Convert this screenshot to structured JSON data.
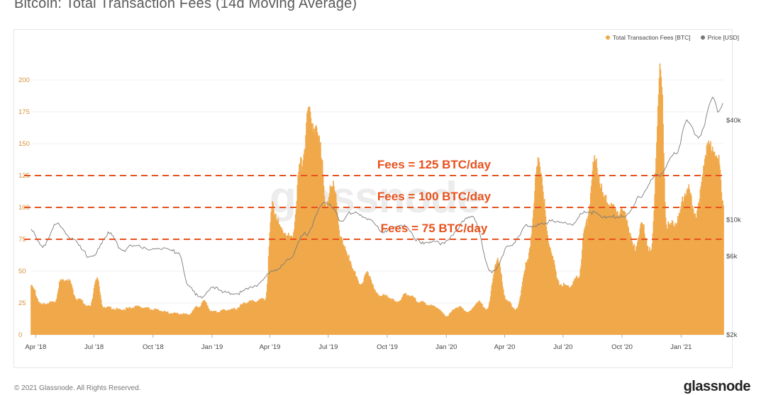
{
  "title": "Bitcoin: Total Transaction Fees (14d Moving Average)",
  "legend": {
    "fees_label": "Total Transaction Fees [BTC]",
    "price_label": "Price [USD]"
  },
  "colors": {
    "fees": "#f0a94a",
    "price": "#7a7a7a",
    "annotation": "#e8521e"
  },
  "watermark": "glassnode",
  "footer": {
    "copyright": "© 2021 Glassnode. All Rights Reserved.",
    "brand": "glassnode"
  },
  "chart_data": {
    "type": "bar",
    "x_range": [
      "2018-03-25",
      "2021-03-08"
    ],
    "x_ticks": [
      "Apr '18",
      "Jul '18",
      "Oct '18",
      "Jan '19",
      "Apr '19",
      "Jul '19",
      "Oct '19",
      "Jan '20",
      "Apr '20",
      "Jul '20",
      "Oct '20",
      "Jan '21"
    ],
    "y_left_ticks": [
      "0",
      "25",
      "50",
      "75",
      "100",
      "125",
      "150",
      "175",
      "200"
    ],
    "y_left_range": [
      0,
      215
    ],
    "y_right_ticks": [
      "$2k",
      "$6k",
      "$10k",
      "$40k"
    ],
    "y_right_scale": "log",
    "fees_series": {
      "name": "Total Transaction Fees [BTC]",
      "points": [
        [
          "2018-03-25",
          38
        ],
        [
          "2018-04-10",
          24
        ],
        [
          "2018-05-01",
          26
        ],
        [
          "2018-05-10",
          42
        ],
        [
          "2018-05-20",
          44
        ],
        [
          "2018-06-05",
          28
        ],
        [
          "2018-06-25",
          22
        ],
        [
          "2018-07-05",
          45
        ],
        [
          "2018-07-15",
          22
        ],
        [
          "2018-08-10",
          20
        ],
        [
          "2018-09-10",
          22
        ],
        [
          "2018-10-01",
          20
        ],
        [
          "2018-11-01",
          17
        ],
        [
          "2018-11-25",
          16
        ],
        [
          "2018-12-10",
          22
        ],
        [
          "2018-12-20",
          26
        ],
        [
          "2019-01-01",
          18
        ],
        [
          "2019-02-01",
          20
        ],
        [
          "2019-03-01",
          26
        ],
        [
          "2019-03-25",
          28
        ],
        [
          "2019-04-05",
          100
        ],
        [
          "2019-04-20",
          82
        ],
        [
          "2019-05-05",
          75
        ],
        [
          "2019-05-20",
          135
        ],
        [
          "2019-06-01",
          172
        ],
        [
          "2019-06-10",
          165
        ],
        [
          "2019-06-20",
          145
        ],
        [
          "2019-06-28",
          98
        ],
        [
          "2019-07-08",
          122
        ],
        [
          "2019-07-20",
          78
        ],
        [
          "2019-08-01",
          60
        ],
        [
          "2019-08-20",
          40
        ],
        [
          "2019-09-01",
          48
        ],
        [
          "2019-09-15",
          32
        ],
        [
          "2019-10-01",
          30
        ],
        [
          "2019-10-15",
          26
        ],
        [
          "2019-11-01",
          32
        ],
        [
          "2019-11-20",
          26
        ],
        [
          "2019-12-15",
          22
        ],
        [
          "2020-01-01",
          15
        ],
        [
          "2020-01-20",
          22
        ],
        [
          "2020-02-05",
          18
        ],
        [
          "2020-02-20",
          26
        ],
        [
          "2020-03-05",
          20
        ],
        [
          "2020-03-20",
          58
        ],
        [
          "2020-04-05",
          26
        ],
        [
          "2020-04-20",
          20
        ],
        [
          "2020-05-05",
          55
        ],
        [
          "2020-05-25",
          135
        ],
        [
          "2020-06-10",
          70
        ],
        [
          "2020-06-25",
          40
        ],
        [
          "2020-07-10",
          38
        ],
        [
          "2020-07-25",
          45
        ],
        [
          "2020-08-05",
          85
        ],
        [
          "2020-08-20",
          135
        ],
        [
          "2020-09-05",
          105
        ],
        [
          "2020-09-20",
          98
        ],
        [
          "2020-10-05",
          95
        ],
        [
          "2020-10-20",
          68
        ],
        [
          "2020-11-01",
          85
        ],
        [
          "2020-11-15",
          65
        ],
        [
          "2020-11-30",
          205
        ],
        [
          "2020-12-10",
          85
        ],
        [
          "2020-12-25",
          88
        ],
        [
          "2021-01-10",
          115
        ],
        [
          "2021-01-25",
          95
        ],
        [
          "2021-02-10",
          145
        ],
        [
          "2021-02-20",
          148
        ],
        [
          "2021-03-01",
          135
        ],
        [
          "2021-03-08",
          105
        ]
      ]
    },
    "price_series": {
      "name": "Price [USD]",
      "points": [
        [
          "2018-03-25",
          8500
        ],
        [
          "2018-04-10",
          6900
        ],
        [
          "2018-05-05",
          9700
        ],
        [
          "2018-05-25",
          7600
        ],
        [
          "2018-06-25",
          6000
        ],
        [
          "2018-07-25",
          8200
        ],
        [
          "2018-08-15",
          6300
        ],
        [
          "2018-09-01",
          7100
        ],
        [
          "2018-10-01",
          6600
        ],
        [
          "2018-11-10",
          6400
        ],
        [
          "2018-11-25",
          4000
        ],
        [
          "2018-12-15",
          3300
        ],
        [
          "2019-01-01",
          3800
        ],
        [
          "2019-02-10",
          3600
        ],
        [
          "2019-03-10",
          3900
        ],
        [
          "2019-04-02",
          4900
        ],
        [
          "2019-05-01",
          5600
        ],
        [
          "2019-05-25",
          8100
        ],
        [
          "2019-06-26",
          12900
        ],
        [
          "2019-07-10",
          11500
        ],
        [
          "2019-07-20",
          9600
        ],
        [
          "2019-08-10",
          11300
        ],
        [
          "2019-09-01",
          10200
        ],
        [
          "2019-09-25",
          8300
        ],
        [
          "2019-10-26",
          9400
        ],
        [
          "2019-11-25",
          7100
        ],
        [
          "2019-12-20",
          7200
        ],
        [
          "2020-02-10",
          10200
        ],
        [
          "2020-03-12",
          4900
        ],
        [
          "2020-04-10",
          6900
        ],
        [
          "2020-05-10",
          9300
        ],
        [
          "2020-06-10",
          9700
        ],
        [
          "2020-07-10",
          9300
        ],
        [
          "2020-08-05",
          11400
        ],
        [
          "2020-09-05",
          10200
        ],
        [
          "2020-10-05",
          10700
        ],
        [
          "2020-10-28",
          13500
        ],
        [
          "2020-11-25",
          18500
        ],
        [
          "2020-12-25",
          26000
        ],
        [
          "2021-01-10",
          39000
        ],
        [
          "2021-01-28",
          31000
        ],
        [
          "2021-02-20",
          56000
        ],
        [
          "2021-02-28",
          46000
        ],
        [
          "2021-03-08",
          52000
        ]
      ]
    },
    "reference_lines": [
      {
        "value": 125,
        "label": "Fees = 125 BTC/day"
      },
      {
        "value": 100,
        "label": "Fees = 100 BTC/day"
      },
      {
        "value": 75,
        "label": "Fees = 75 BTC/day"
      }
    ]
  }
}
